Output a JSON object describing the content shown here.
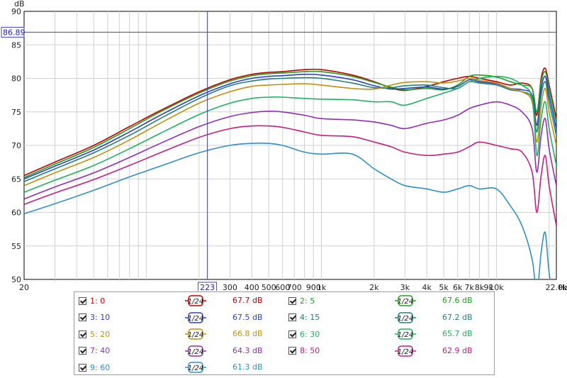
{
  "chart_data": {
    "type": "line",
    "ylabel": "dB",
    "xlabel": "Hz",
    "xscale": "log",
    "xlim": [
      20,
      22000
    ],
    "ylim": [
      50,
      90
    ],
    "grid": true,
    "x_tick_labels": [
      {
        "v": 20,
        "t": "20"
      },
      {
        "v": 300,
        "t": "300"
      },
      {
        "v": 400,
        "t": "400"
      },
      {
        "v": 500,
        "t": "500"
      },
      {
        "v": 600,
        "t": "600"
      },
      {
        "v": 700,
        "t": "700"
      },
      {
        "v": 900,
        "t": "900"
      },
      {
        "v": 1000,
        "t": "1k"
      },
      {
        "v": 2000,
        "t": "2k"
      },
      {
        "v": 3000,
        "t": "3k"
      },
      {
        "v": 4000,
        "t": "4k"
      },
      {
        "v": 5000,
        "t": "5k"
      },
      {
        "v": 6000,
        "t": "6k"
      },
      {
        "v": 7000,
        "t": "7k"
      },
      {
        "v": 8000,
        "t": "8k"
      },
      {
        "v": 9000,
        "t": "9k"
      },
      {
        "v": 10000,
        "t": "10k"
      },
      {
        "v": 22000,
        "t": "22.0k"
      }
    ],
    "y_ticks": [
      50,
      55,
      60,
      65,
      70,
      75,
      80,
      85,
      90
    ],
    "cursor": {
      "x": 223,
      "x_label": "223",
      "y": 86.89,
      "y_label": "86.89"
    },
    "series": [
      {
        "name": "1: 0",
        "color": "#c00000",
        "smoothing": "1/24",
        "level": "67.7 dB",
        "x": [
          20,
          30,
          50,
          80,
          120,
          200,
          300,
          400,
          500,
          600,
          800,
          1000,
          1500,
          2000,
          2500,
          3000,
          4000,
          5000,
          6000,
          7000,
          8000,
          10000,
          12000,
          14000,
          16000,
          17000,
          18000,
          19000,
          20000,
          22000
        ],
        "y": [
          65.5,
          67.5,
          70.0,
          72.8,
          75.2,
          78.0,
          79.8,
          80.6,
          80.9,
          81.0,
          81.3,
          81.3,
          80.5,
          79.5,
          78.6,
          78.2,
          78.8,
          79.5,
          80.0,
          80.3,
          80.0,
          79.5,
          79.0,
          79.3,
          78.5,
          74.5,
          80.0,
          81.5,
          79.0,
          74.0
        ]
      },
      {
        "name": "2: 5",
        "color": "#20a020",
        "smoothing": "1/24",
        "level": "67.6 dB",
        "x": [
          20,
          30,
          50,
          80,
          120,
          200,
          300,
          400,
          500,
          600,
          800,
          1000,
          1500,
          2000,
          2500,
          3000,
          4000,
          5000,
          6000,
          7000,
          8000,
          10000,
          12000,
          14000,
          16000,
          17000,
          18000,
          19000,
          20000,
          22000
        ],
        "y": [
          65.2,
          67.2,
          69.7,
          72.5,
          75.0,
          77.8,
          79.6,
          80.4,
          80.7,
          80.8,
          81.0,
          81.0,
          80.3,
          79.4,
          78.7,
          78.3,
          78.5,
          78.3,
          79.0,
          80.3,
          80.5,
          80.2,
          79.5,
          79.0,
          78.5,
          75.0,
          79.5,
          81.0,
          78.5,
          73.5
        ]
      },
      {
        "name": "3: 10",
        "color": "#3040c0",
        "smoothing": "1/24",
        "level": "67.5 dB",
        "x": [
          20,
          30,
          50,
          80,
          120,
          200,
          300,
          400,
          500,
          600,
          800,
          1000,
          1500,
          2000,
          2500,
          3000,
          4000,
          5000,
          6000,
          7000,
          8000,
          10000,
          12000,
          14000,
          16000,
          17000,
          18000,
          19000,
          20000,
          22000
        ],
        "y": [
          65.0,
          66.9,
          69.3,
          72.0,
          74.5,
          77.4,
          79.2,
          80.0,
          80.3,
          80.4,
          80.6,
          80.5,
          79.8,
          78.9,
          78.4,
          78.5,
          78.7,
          78.4,
          78.8,
          79.8,
          79.5,
          79.2,
          78.5,
          78.3,
          77.5,
          73.0,
          78.5,
          80.3,
          77.5,
          72.5
        ]
      },
      {
        "name": "4: 15",
        "color": "#208080",
        "smoothing": "1/24",
        "level": "67.2 dB",
        "x": [
          20,
          30,
          50,
          80,
          120,
          200,
          300,
          400,
          500,
          600,
          800,
          1000,
          1500,
          2000,
          2500,
          3000,
          4000,
          5000,
          6000,
          7000,
          8000,
          10000,
          12000,
          14000,
          16000,
          17000,
          18000,
          19000,
          20000,
          22000
        ],
        "y": [
          64.6,
          66.5,
          68.9,
          71.5,
          74.0,
          77.0,
          78.9,
          79.6,
          79.9,
          80.0,
          80.1,
          80.0,
          79.3,
          78.6,
          78.6,
          78.9,
          79.0,
          78.6,
          78.5,
          79.5,
          79.3,
          79.0,
          78.3,
          78.0,
          77.0,
          72.0,
          77.5,
          79.5,
          76.5,
          71.5
        ]
      },
      {
        "name": "5: 20",
        "color": "#c09010",
        "smoothing": "1/24",
        "level": "66.8 dB",
        "x": [
          20,
          30,
          50,
          80,
          120,
          200,
          300,
          400,
          500,
          600,
          800,
          1000,
          1500,
          2000,
          2500,
          3000,
          4000,
          5000,
          6000,
          7000,
          8000,
          10000,
          12000,
          14000,
          16000,
          17000,
          18000,
          19000,
          20000,
          22000
        ],
        "y": [
          64.0,
          65.9,
          68.2,
          70.8,
          73.3,
          76.3,
          78.0,
          78.8,
          79.0,
          79.1,
          79.2,
          79.0,
          78.5,
          78.4,
          79.0,
          79.4,
          79.5,
          79.3,
          79.6,
          80.0,
          79.7,
          79.3,
          78.5,
          78.0,
          76.5,
          70.5,
          76.0,
          78.5,
          75.0,
          70.0
        ]
      },
      {
        "name": "6: 30",
        "color": "#20b060",
        "smoothing": "1/24",
        "level": "65.7 dB",
        "x": [
          20,
          30,
          50,
          80,
          120,
          200,
          300,
          400,
          500,
          600,
          800,
          1000,
          1500,
          2000,
          2500,
          3000,
          4000,
          5000,
          6000,
          7000,
          8000,
          10000,
          12000,
          14000,
          16000,
          17000,
          18000,
          19000,
          20000,
          22000
        ],
        "y": [
          63.0,
          64.8,
          67.0,
          69.5,
          71.8,
          74.6,
          76.3,
          77.0,
          77.2,
          77.2,
          77.0,
          76.9,
          76.8,
          76.5,
          76.5,
          76.0,
          77.0,
          77.8,
          78.5,
          79.5,
          80.0,
          80.3,
          80.0,
          79.0,
          77.0,
          68.5,
          74.0,
          76.5,
          72.5,
          67.0
        ]
      },
      {
        "name": "7: 40",
        "color": "#9030b0",
        "smoothing": "1/24",
        "level": "64.3 dB",
        "x": [
          20,
          30,
          50,
          80,
          120,
          200,
          300,
          400,
          500,
          600,
          800,
          1000,
          1500,
          2000,
          2500,
          3000,
          4000,
          5000,
          6000,
          7000,
          8000,
          10000,
          12000,
          14000,
          16000,
          17000,
          18000,
          19000,
          20000,
          22000
        ],
        "y": [
          62.0,
          63.8,
          65.9,
          68.2,
          70.3,
          72.8,
          74.3,
          74.9,
          75.1,
          75.0,
          74.5,
          74.0,
          73.8,
          73.5,
          73.0,
          72.5,
          73.3,
          73.8,
          74.5,
          75.5,
          76.0,
          76.5,
          76.0,
          75.0,
          72.5,
          66.0,
          71.5,
          74.0,
          69.5,
          64.0
        ]
      },
      {
        "name": "8: 50",
        "color": "#c02080",
        "smoothing": "1/24",
        "level": "62.9 dB",
        "x": [
          20,
          30,
          50,
          80,
          120,
          200,
          300,
          400,
          500,
          600,
          800,
          1000,
          1500,
          2000,
          2500,
          3000,
          4000,
          5000,
          6000,
          7000,
          8000,
          10000,
          12000,
          14000,
          16000,
          17000,
          18000,
          19000,
          20000,
          22000
        ],
        "y": [
          61.2,
          62.9,
          64.9,
          67.0,
          68.9,
          71.2,
          72.5,
          72.9,
          72.9,
          72.7,
          72.0,
          71.5,
          71.3,
          70.5,
          69.8,
          69.0,
          68.5,
          68.7,
          69.0,
          69.8,
          70.5,
          70.0,
          69.5,
          69.0,
          66.0,
          60.0,
          65.5,
          68.5,
          64.0,
          58.0
        ]
      },
      {
        "name": "9: 60",
        "color": "#3090c0",
        "smoothing": "1/24",
        "level": "61.3 dB",
        "x": [
          20,
          30,
          50,
          80,
          120,
          200,
          300,
          400,
          500,
          600,
          800,
          1000,
          1500,
          2000,
          2500,
          3000,
          4000,
          5000,
          6000,
          7000,
          8000,
          10000,
          12000,
          14000,
          16000,
          17000,
          18000,
          19000,
          20000,
          22000
        ],
        "y": [
          59.8,
          61.3,
          63.3,
          65.3,
          66.9,
          68.9,
          70.0,
          70.3,
          70.3,
          70.0,
          69.0,
          68.7,
          68.7,
          66.5,
          65.0,
          64.0,
          63.5,
          63.0,
          63.5,
          64.0,
          63.5,
          63.5,
          61.0,
          58.0,
          53.0,
          48.0,
          54.0,
          57.0,
          51.0,
          44.0
        ]
      }
    ]
  }
}
